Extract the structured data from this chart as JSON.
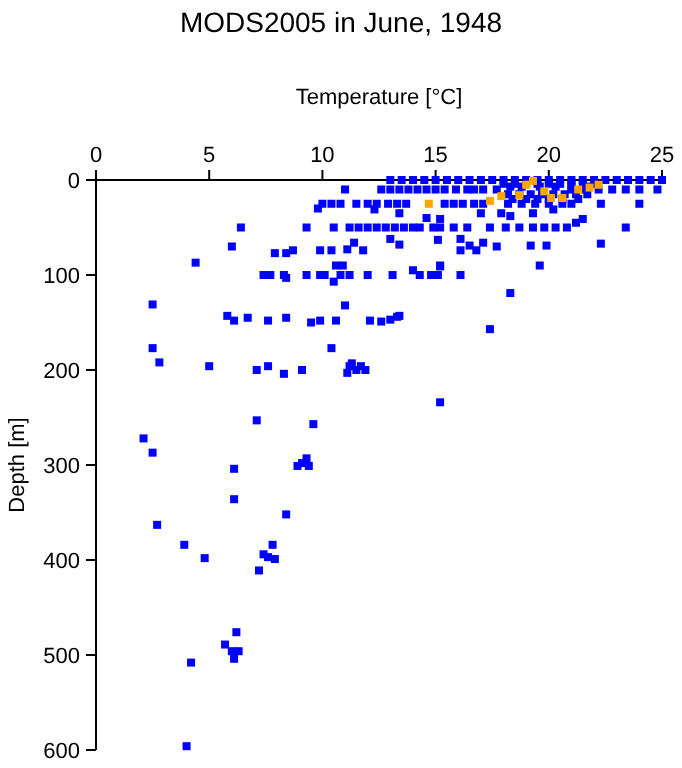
{
  "chart_data": {
    "type": "scatter",
    "title": "MODS2005 in June, 1948",
    "xlabel": "Temperature [°C]",
    "ylabel": "Depth [m]",
    "xlim": [
      0,
      25
    ],
    "xticks": [
      0,
      5,
      10,
      15,
      20,
      25
    ],
    "ylim": [
      600,
      0
    ],
    "yticks": [
      0,
      100,
      200,
      300,
      400,
      500,
      600
    ],
    "grid": false,
    "marker": "square",
    "series": [
      {
        "color": "#0000ff",
        "x": [
          13,
          13.5,
          14,
          14.5,
          15,
          15.5,
          16,
          16.5,
          17,
          17.5,
          18,
          18.5,
          19,
          19.5,
          20,
          20.5,
          21,
          21.5,
          22,
          22.5,
          23,
          23.5,
          24,
          24.5,
          25,
          18,
          18.5,
          19,
          19.5,
          20,
          20.5,
          21,
          21.5,
          22,
          18.3,
          18.8,
          19.6,
          20.3,
          21,
          21.7,
          11,
          12.6,
          13,
          13.4,
          13.8,
          14.2,
          14.6,
          15,
          15.4,
          15.9,
          16.4,
          16.7,
          17.1,
          17.7,
          21,
          21.6,
          22.2,
          22.8,
          23.4,
          24,
          24.8,
          18.2,
          18.7,
          19.2,
          19.7,
          20.2,
          20.7,
          21.2,
          21.7,
          18.4,
          19,
          19.5,
          20,
          20.6,
          21.3,
          10,
          10.4,
          10.8,
          11.5,
          12,
          12.4,
          12.9,
          13.3,
          13.7,
          15.4,
          15.8,
          16.2,
          16.7,
          17.1,
          18.2,
          18.8,
          19.4,
          20,
          20.6,
          21,
          22.3,
          24,
          9.8,
          12.3,
          13.4,
          14.6,
          15.2,
          17,
          17.9,
          18.3,
          19.3,
          20.2,
          21.5,
          21.2,
          6.4,
          9.3,
          10.5,
          11.2,
          11.6,
          12,
          12.4,
          12.8,
          13.2,
          13.6,
          14,
          14.3,
          14.9,
          15.2,
          15.8,
          16.4,
          17.4,
          18.1,
          18.7,
          19.3,
          19.8,
          20.3,
          20.8,
          23.4,
          11.4,
          13,
          13.4,
          15.1,
          16.1,
          16.5,
          17.1,
          19.2,
          19.9,
          22.3,
          6,
          16.1,
          16.8,
          17.7,
          9.9,
          10.4,
          11.1,
          11.8,
          7.9,
          8.4,
          8.7,
          4.4,
          10.6,
          10.9,
          15.2,
          19.6,
          7.4,
          7.7,
          8.3,
          8.4,
          9.3,
          9.9,
          10.1,
          10.5,
          10.8,
          11.2,
          12,
          13.1,
          14,
          14.3,
          14.8,
          15.1,
          15.2,
          16.1,
          18.3,
          2.5,
          11,
          5.8,
          6.1,
          6.7,
          7.6,
          8.4,
          9.5,
          9.9,
          10.6,
          12.1,
          12.6,
          13,
          13.3,
          13.4,
          17.4,
          2.5,
          10.4,
          2.8,
          5,
          7.1,
          7.6,
          8.3,
          9.1,
          11.3,
          11.2,
          11.1,
          11.5,
          11.7,
          11.9,
          15.2,
          7.1,
          9.6,
          2.1,
          2.5,
          9.3,
          8.9,
          9.1,
          9.4,
          6.1,
          6.1,
          8.4,
          2.7,
          3.9,
          4.8,
          7.8,
          7.4,
          7.6,
          7.9,
          7.2,
          6.2,
          5.7,
          6,
          6.3,
          6.1,
          4.2,
          4
        ],
        "values": [
          0,
          0,
          0,
          0,
          0,
          0,
          0,
          0,
          0,
          0,
          0,
          0,
          0,
          0,
          0,
          0,
          0,
          0,
          0,
          0,
          0,
          0,
          0,
          0,
          0,
          4,
          4,
          4,
          4,
          4,
          4,
          4,
          4,
          4,
          7,
          7,
          7,
          7,
          7,
          7,
          10,
          10,
          10,
          10,
          10,
          10,
          10,
          10,
          10,
          10,
          10,
          10,
          10,
          10,
          10,
          10,
          10,
          10,
          10,
          10,
          10,
          15,
          15,
          15,
          15,
          15,
          15,
          15,
          15,
          20,
          20,
          20,
          20,
          20,
          20,
          25,
          25,
          25,
          25,
          25,
          25,
          25,
          25,
          25,
          25,
          25,
          25,
          25,
          25,
          25,
          25,
          25,
          25,
          25,
          25,
          25,
          25,
          30,
          31,
          35,
          40,
          41,
          35,
          35,
          38,
          35,
          31,
          41,
          45,
          50,
          50,
          50,
          50,
          50,
          50,
          50,
          50,
          50,
          50,
          50,
          50,
          50,
          50,
          50,
          50,
          50,
          50,
          50,
          50,
          50,
          50,
          50,
          50,
          66,
          62,
          68,
          63,
          62,
          69,
          66,
          69,
          69,
          67,
          70,
          74,
          74,
          70,
          74,
          74,
          73,
          74,
          77,
          77,
          74,
          87,
          90,
          90,
          90,
          90,
          100,
          100,
          100,
          103,
          100,
          100,
          100,
          107,
          100,
          100,
          100,
          100,
          95,
          100,
          100,
          100,
          91,
          100,
          119,
          131,
          132,
          143,
          148,
          145,
          148,
          145,
          150,
          148,
          148,
          148,
          149,
          147,
          144,
          143,
          157,
          177,
          177,
          192,
          196,
          200,
          196,
          204,
          200,
          193,
          196,
          203,
          200,
          196,
          200,
          234,
          253,
          257,
          272,
          287,
          293,
          301,
          298,
          301,
          304,
          336,
          352,
          363,
          384,
          398,
          384,
          394,
          397,
          399,
          411,
          476,
          489,
          496,
          496,
          504,
          508,
          596
        ]
      },
      {
        "color": "#ffa500",
        "x": [
          17.4,
          17.9,
          18.7,
          19.3,
          19,
          20.1,
          20.6,
          21.3,
          21.8,
          22.2,
          19.8,
          14.7
        ],
        "values": [
          22,
          17,
          16,
          1,
          5,
          19,
          19,
          10,
          8,
          5,
          12,
          25
        ]
      }
    ]
  }
}
